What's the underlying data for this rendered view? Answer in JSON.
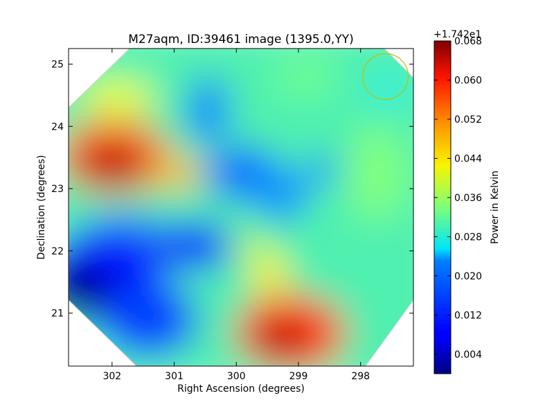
{
  "chart_data": {
    "type": "heatmap",
    "title": "M27aqm, ID:39461 image (1395.0,YY)",
    "xlabel": "Right Ascension (degrees)",
    "ylabel": "Declination (degrees)",
    "xlim": [
      302.7,
      297.15
    ],
    "ylim": [
      20.15,
      25.25
    ],
    "x_ticks": [
      302,
      301,
      300,
      299,
      298
    ],
    "x_tick_labels": [
      "302",
      "301",
      "300",
      "299",
      "298"
    ],
    "y_ticks": [
      21,
      22,
      23,
      24,
      25
    ],
    "y_tick_labels": [
      "21",
      "22",
      "23",
      "24",
      "25"
    ],
    "colorbar": {
      "label": "Power in Kelvin",
      "offset_text": "+1.742e1",
      "range": [
        0.0,
        0.068
      ],
      "ticks": [
        0.004,
        0.012,
        0.02,
        0.028,
        0.036,
        0.044,
        0.052,
        0.06,
        0.068
      ],
      "tick_labels": [
        "0.004",
        "0.012",
        "0.020",
        "0.028",
        "0.036",
        "0.044",
        "0.052",
        "0.060",
        "0.068"
      ],
      "colormap": "jet"
    },
    "field_features": [
      {
        "ra": 301.9,
        "dec": 23.35,
        "value": 0.068,
        "kind": "peak"
      },
      {
        "ra": 299.1,
        "dec": 20.6,
        "value": 0.066,
        "kind": "peak"
      },
      {
        "ra": 302.6,
        "dec": 21.6,
        "value": 0.0,
        "kind": "minimum"
      },
      {
        "ra": 300.8,
        "dec": 22.05,
        "value": 0.008,
        "kind": "minimum"
      },
      {
        "ra": 300.4,
        "dec": 24.3,
        "value": 0.014,
        "kind": "minimum"
      },
      {
        "ra": 299.9,
        "dec": 23.1,
        "value": 0.014,
        "kind": "minimum"
      },
      {
        "ra": 298.9,
        "dec": 23.2,
        "value": 0.016,
        "kind": "minimum"
      },
      {
        "ra": 299.8,
        "dec": 21.8,
        "value": 0.044,
        "kind": "ridge"
      }
    ],
    "beam_marker": {
      "ra": 297.6,
      "dec": 24.8,
      "shape": "circle",
      "color": "#bfbf00"
    },
    "footprint": "octagon"
  }
}
